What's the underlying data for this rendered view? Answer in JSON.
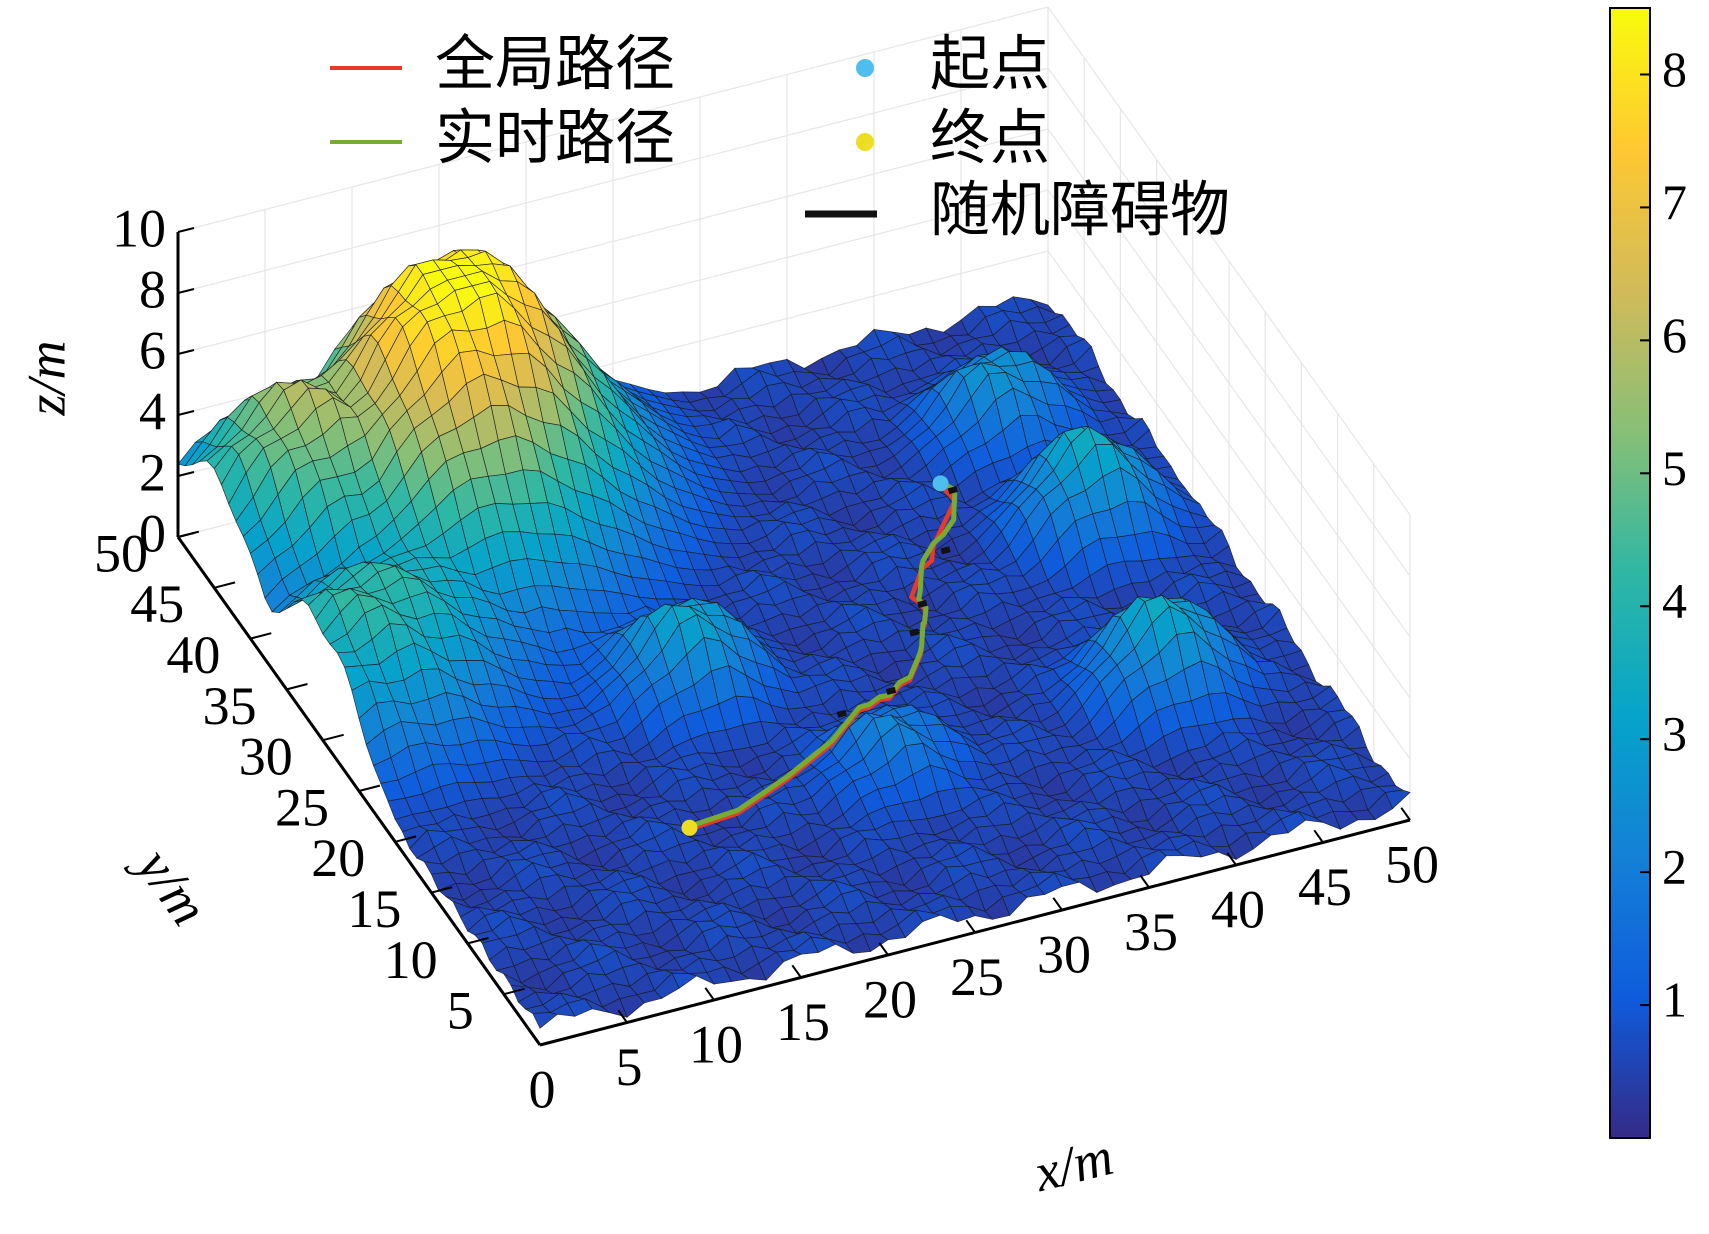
{
  "chart_data": {
    "type": "surface",
    "legend": [
      {
        "label": "全局路径",
        "kind": "line",
        "color": "#e8392b"
      },
      {
        "label": "实时路径",
        "kind": "line",
        "color": "#77ac30"
      },
      {
        "label": "起点",
        "kind": "marker",
        "color": "#4dbeee"
      },
      {
        "label": "终点",
        "kind": "marker",
        "color": "#edde23"
      },
      {
        "label": "随机障碍物",
        "kind": "line",
        "color": "#111111"
      }
    ],
    "xlabel": "x/m",
    "ylabel": "y/m",
    "zlabel": "z/m",
    "xlim": [
      0,
      50
    ],
    "ylim": [
      0,
      50
    ],
    "zlim": [
      0,
      10
    ],
    "x_ticks": [
      "0",
      "5",
      "10",
      "15",
      "20",
      "25",
      "30",
      "35",
      "40",
      "45",
      "50"
    ],
    "y_ticks": [
      "5",
      "10",
      "15",
      "20",
      "25",
      "30",
      "35",
      "40",
      "45",
      "50"
    ],
    "z_ticks": [
      "0",
      "2",
      "4",
      "6",
      "8",
      "10"
    ],
    "colorbar": {
      "ticks": [
        "1",
        "2",
        "3",
        "4",
        "5",
        "6",
        "7",
        "8"
      ],
      "range": [
        0,
        8.5
      ],
      "colormap": [
        "#352a87",
        "#0f5cdd",
        "#1481d6",
        "#06a4ca",
        "#2eb7a4",
        "#87bf77",
        "#d1bb59",
        "#fec832",
        "#f9fb0e"
      ]
    },
    "grid": true,
    "terrain_peaks": [
      {
        "x": 14,
        "y": 45,
        "z": 8.4
      },
      {
        "x": 5,
        "y": 45,
        "z": 5.5
      },
      {
        "x": 2,
        "y": 30,
        "z": 3.8
      },
      {
        "x": 19,
        "y": 25,
        "z": 3.2
      },
      {
        "x": 44,
        "y": 30,
        "z": 3.5
      },
      {
        "x": 42,
        "y": 15,
        "z": 3.4
      },
      {
        "x": 43,
        "y": 40,
        "z": 2.8
      },
      {
        "x": 26,
        "y": 14,
        "z": 2.2
      }
    ],
    "start_point": {
      "x": 38,
      "y": 36,
      "z": 0.5
    },
    "end_point": {
      "x": 14,
      "y": 13,
      "z": 1.0
    },
    "global_path": [
      [
        38,
        36
      ],
      [
        38,
        34
      ],
      [
        37,
        33
      ],
      [
        36,
        32
      ],
      [
        35.5,
        31
      ],
      [
        35,
        30
      ],
      [
        34,
        29
      ],
      [
        33,
        28
      ],
      [
        33,
        27
      ],
      [
        33,
        26
      ],
      [
        32.5,
        25
      ],
      [
        32,
        24
      ],
      [
        31.5,
        23
      ],
      [
        31,
        22
      ],
      [
        30,
        21
      ],
      [
        29,
        20
      ],
      [
        28,
        19
      ],
      [
        27,
        18
      ],
      [
        26,
        17
      ],
      [
        25,
        16
      ],
      [
        23,
        15
      ],
      [
        20,
        14
      ],
      [
        17,
        13.5
      ],
      [
        14,
        13
      ]
    ],
    "realtime_path": [
      [
        38,
        36
      ],
      [
        38.2,
        34.5
      ],
      [
        37.5,
        33
      ],
      [
        36.5,
        32
      ],
      [
        35.5,
        31
      ],
      [
        34.5,
        30
      ],
      [
        34,
        29
      ],
      [
        33.5,
        28
      ],
      [
        33,
        27
      ],
      [
        33,
        26
      ],
      [
        32.5,
        25
      ],
      [
        32,
        24
      ],
      [
        31.5,
        23
      ],
      [
        31,
        22
      ],
      [
        30,
        21
      ],
      [
        29,
        20
      ],
      [
        28,
        19
      ],
      [
        27,
        18
      ],
      [
        26,
        17
      ],
      [
        25,
        16
      ],
      [
        23,
        15
      ],
      [
        20,
        14
      ],
      [
        17,
        13.5
      ],
      [
        14,
        13
      ]
    ],
    "obstacles": [
      [
        38.5,
        35.5
      ],
      [
        36,
        30.5
      ],
      [
        33,
        26.5
      ],
      [
        31.5,
        24
      ],
      [
        28.5,
        20
      ],
      [
        24,
        16
      ]
    ]
  }
}
